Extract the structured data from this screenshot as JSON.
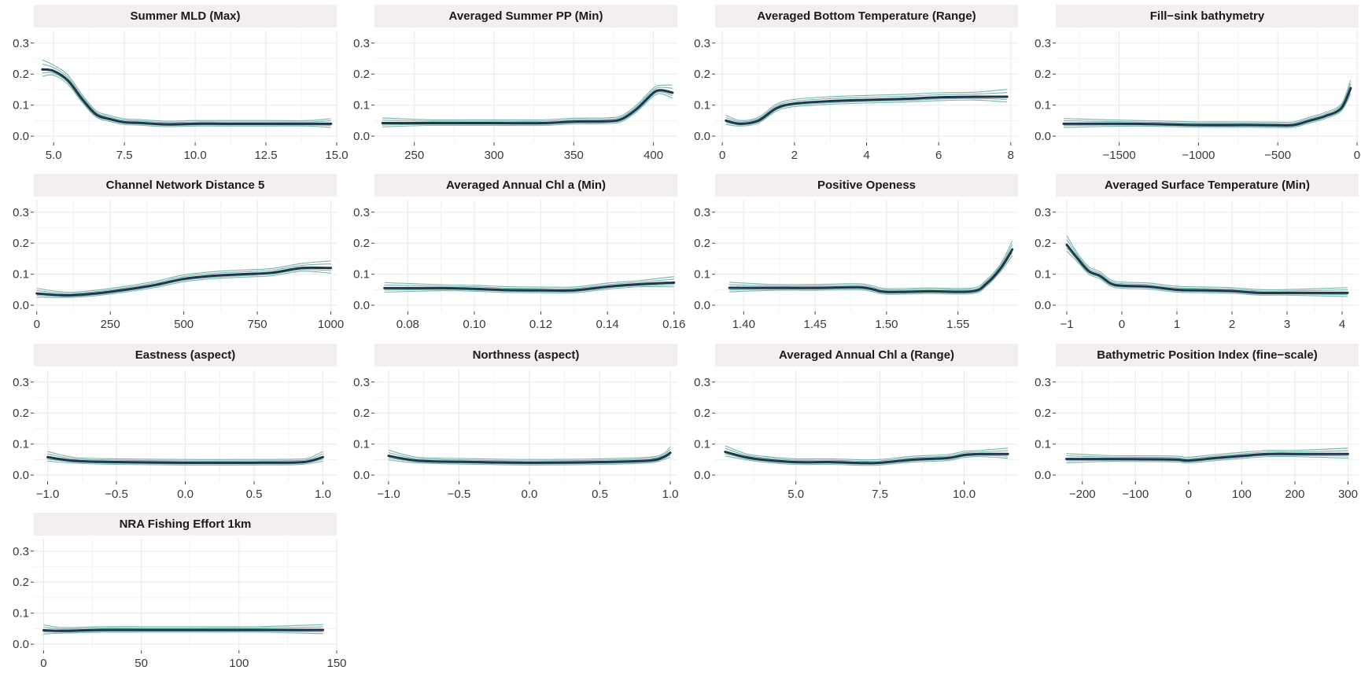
{
  "colors": {
    "strip_bg": "#f2efee",
    "grid": "#ebebeb",
    "main_line": "#1f3550",
    "replicate_line": "#5fa89a",
    "text": "#3a3a3a"
  },
  "chart_data": [
    {
      "type": "line",
      "title": "Summer MLD (Max)",
      "xlim": [
        4.3,
        15.0
      ],
      "ylim": [
        -0.02,
        0.34
      ],
      "xticks": [
        5.0,
        7.5,
        10.0,
        12.5,
        15.0
      ],
      "xtick_labels": [
        "5.0",
        "7.5",
        "10.0",
        "12.5",
        "15.0"
      ],
      "yticks": [
        0.0,
        0.1,
        0.2,
        0.3
      ],
      "ytick_labels": [
        "0.0",
        "0.1",
        "0.2",
        "0.3"
      ],
      "x": [
        4.6,
        5.0,
        5.5,
        6.0,
        6.5,
        7.0,
        7.5,
        8.0,
        9.0,
        10.0,
        11.0,
        12.5,
        14.0,
        14.8
      ],
      "y": [
        0.215,
        0.21,
        0.18,
        0.12,
        0.07,
        0.055,
        0.045,
        0.043,
        0.038,
        0.04,
        0.04,
        0.04,
        0.04,
        0.04
      ]
    },
    {
      "type": "line",
      "title": "Averaged Summer PP (Min)",
      "xlim": [
        225,
        415
      ],
      "ylim": [
        -0.02,
        0.34
      ],
      "xticks": [
        250,
        300,
        350,
        400
      ],
      "xtick_labels": [
        "250",
        "300",
        "350",
        "400"
      ],
      "yticks": [
        0.0,
        0.1,
        0.2,
        0.3
      ],
      "ytick_labels": [
        "0.0",
        "0.1",
        "0.2",
        "0.3"
      ],
      "x": [
        230,
        260,
        300,
        330,
        350,
        370,
        380,
        390,
        400,
        405,
        412
      ],
      "y": [
        0.042,
        0.042,
        0.042,
        0.042,
        0.047,
        0.048,
        0.055,
        0.09,
        0.14,
        0.148,
        0.14
      ]
    },
    {
      "type": "line",
      "title": "Averaged Bottom Temperature (Range)",
      "xlim": [
        -0.2,
        8.2
      ],
      "ylim": [
        -0.02,
        0.34
      ],
      "xticks": [
        0,
        2,
        4,
        6,
        8
      ],
      "xtick_labels": [
        "0",
        "2",
        "4",
        "6",
        "8"
      ],
      "yticks": [
        0.0,
        0.1,
        0.2,
        0.3
      ],
      "ytick_labels": [
        "0.0",
        "0.1",
        "0.2",
        "0.3"
      ],
      "x": [
        0.1,
        0.5,
        1.0,
        1.5,
        2.0,
        3.0,
        4.0,
        5.0,
        6.0,
        7.0,
        7.9
      ],
      "y": [
        0.05,
        0.04,
        0.05,
        0.09,
        0.105,
        0.113,
        0.117,
        0.12,
        0.125,
        0.127,
        0.127
      ]
    },
    {
      "type": "line",
      "title": "Fill−sink bathymetry",
      "xlim": [
        -1900,
        10
      ],
      "ylim": [
        -0.02,
        0.34
      ],
      "xticks": [
        -1500,
        -1000,
        -500,
        0
      ],
      "xtick_labels": [
        "−1500",
        "−1000",
        "−500",
        "0"
      ],
      "yticks": [
        0.0,
        0.1,
        0.2,
        0.3
      ],
      "ytick_labels": [
        "0.0",
        "0.1",
        "0.2",
        "0.3"
      ],
      "x": [
        -1850,
        -1400,
        -1000,
        -700,
        -500,
        -400,
        -300,
        -200,
        -100,
        -40
      ],
      "y": [
        0.04,
        0.04,
        0.036,
        0.036,
        0.035,
        0.036,
        0.05,
        0.065,
        0.09,
        0.155
      ]
    },
    {
      "type": "line",
      "title": "Channel Network Distance 5",
      "xlim": [
        -10,
        1020
      ],
      "ylim": [
        -0.02,
        0.34
      ],
      "xticks": [
        0,
        250,
        500,
        750,
        1000
      ],
      "xtick_labels": [
        "0",
        "250",
        "500",
        "750",
        "1000"
      ],
      "yticks": [
        0.0,
        0.1,
        0.2,
        0.3
      ],
      "ytick_labels": [
        "0.0",
        "0.1",
        "0.2",
        "0.3"
      ],
      "x": [
        0,
        100,
        200,
        300,
        400,
        500,
        600,
        700,
        800,
        900,
        1000
      ],
      "y": [
        0.038,
        0.032,
        0.038,
        0.05,
        0.065,
        0.085,
        0.095,
        0.1,
        0.105,
        0.12,
        0.12
      ]
    },
    {
      "type": "line",
      "title": "Averaged Annual Chl a (Min)",
      "xlim": [
        0.07,
        0.161
      ],
      "ylim": [
        -0.02,
        0.34
      ],
      "xticks": [
        0.08,
        0.1,
        0.12,
        0.14,
        0.16
      ],
      "xtick_labels": [
        "0.08",
        "0.10",
        "0.12",
        "0.14",
        "0.16"
      ],
      "yticks": [
        0.0,
        0.1,
        0.2,
        0.3
      ],
      "ytick_labels": [
        "0.0",
        "0.1",
        "0.2",
        "0.3"
      ],
      "x": [
        0.073,
        0.09,
        0.1,
        0.11,
        0.12,
        0.13,
        0.14,
        0.15,
        0.16
      ],
      "y": [
        0.055,
        0.055,
        0.053,
        0.049,
        0.048,
        0.048,
        0.06,
        0.068,
        0.073
      ]
    },
    {
      "type": "line",
      "title": "Positive Openess",
      "xlim": [
        1.38,
        1.592
      ],
      "ylim": [
        -0.02,
        0.34
      ],
      "xticks": [
        1.4,
        1.45,
        1.5,
        1.55
      ],
      "xtick_labels": [
        "1.40",
        "1.45",
        "1.50",
        "1.55"
      ],
      "yticks": [
        0.0,
        0.1,
        0.2,
        0.3
      ],
      "ytick_labels": [
        "0.0",
        "0.1",
        "0.2",
        "0.3"
      ],
      "x": [
        1.39,
        1.42,
        1.45,
        1.48,
        1.49,
        1.5,
        1.53,
        1.56,
        1.57,
        1.58,
        1.588
      ],
      "y": [
        0.056,
        0.056,
        0.056,
        0.058,
        0.052,
        0.043,
        0.045,
        0.045,
        0.07,
        0.12,
        0.18
      ]
    },
    {
      "type": "line",
      "title": "Averaged Surface Temperature (Min)",
      "xlim": [
        -1.2,
        4.3
      ],
      "ylim": [
        -0.02,
        0.34
      ],
      "xticks": [
        -1,
        0,
        1,
        2,
        3,
        4
      ],
      "xtick_labels": [
        "−1",
        "0",
        "1",
        "2",
        "3",
        "4"
      ],
      "yticks": [
        0.0,
        0.1,
        0.2,
        0.3
      ],
      "ytick_labels": [
        "0.0",
        "0.1",
        "0.2",
        "0.3"
      ],
      "x": [
        -1.0,
        -0.8,
        -0.6,
        -0.4,
        -0.2,
        0.0,
        0.5,
        1.0,
        1.5,
        2.0,
        2.5,
        3.0,
        4.1
      ],
      "y": [
        0.195,
        0.15,
        0.11,
        0.095,
        0.07,
        0.063,
        0.06,
        0.05,
        0.048,
        0.046,
        0.04,
        0.04,
        0.04
      ]
    },
    {
      "type": "line",
      "title": "Eastness (aspect)",
      "xlim": [
        -1.1,
        1.1
      ],
      "ylim": [
        -0.02,
        0.34
      ],
      "xticks": [
        -1.0,
        -0.5,
        0.0,
        0.5,
        1.0
      ],
      "xtick_labels": [
        "−1.0",
        "−0.5",
        "0.0",
        "0.5",
        "1.0"
      ],
      "yticks": [
        0.0,
        0.1,
        0.2,
        0.3
      ],
      "ytick_labels": [
        "0.0",
        "0.1",
        "0.2",
        "0.3"
      ],
      "x": [
        -1.0,
        -0.8,
        -0.5,
        0.0,
        0.5,
        0.8,
        0.9,
        1.0
      ],
      "y": [
        0.058,
        0.046,
        0.042,
        0.04,
        0.04,
        0.041,
        0.045,
        0.058
      ]
    },
    {
      "type": "line",
      "title": "Northness (aspect)",
      "xlim": [
        -1.1,
        1.05
      ],
      "ylim": [
        -0.02,
        0.34
      ],
      "xticks": [
        -1.0,
        -0.5,
        0.0,
        0.5,
        1.0
      ],
      "xtick_labels": [
        "−1.0",
        "−0.5",
        "0.0",
        "0.5",
        "1.0"
      ],
      "yticks": [
        0.0,
        0.1,
        0.2,
        0.3
      ],
      "ytick_labels": [
        "0.0",
        "0.1",
        "0.2",
        "0.3"
      ],
      "x": [
        -1.0,
        -0.8,
        -0.5,
        0.0,
        0.5,
        0.85,
        0.95,
        1.0
      ],
      "y": [
        0.062,
        0.047,
        0.043,
        0.04,
        0.042,
        0.047,
        0.058,
        0.072
      ]
    },
    {
      "type": "line",
      "title": "Averaged Annual Chl a (Range)",
      "xlim": [
        2.6,
        11.6
      ],
      "ylim": [
        -0.02,
        0.34
      ],
      "xticks": [
        5.0,
        7.5,
        10.0
      ],
      "xtick_labels": [
        "5.0",
        "7.5",
        "10.0"
      ],
      "yticks": [
        0.0,
        0.1,
        0.2,
        0.3
      ],
      "ytick_labels": [
        "0.0",
        "0.1",
        "0.2",
        "0.3"
      ],
      "x": [
        2.9,
        3.5,
        4.0,
        5.0,
        6.0,
        7.0,
        7.5,
        8.5,
        9.5,
        10.0,
        10.5,
        11.3
      ],
      "y": [
        0.075,
        0.058,
        0.05,
        0.042,
        0.042,
        0.039,
        0.04,
        0.05,
        0.055,
        0.065,
        0.068,
        0.068
      ]
    },
    {
      "type": "line",
      "title": "Bathymetric Position Index (fine−scale)",
      "xlim": [
        -250,
        320
      ],
      "ylim": [
        -0.02,
        0.34
      ],
      "xticks": [
        -200,
        -100,
        0,
        100,
        200,
        300
      ],
      "xtick_labels": [
        "−200",
        "−100",
        "0",
        "100",
        "200",
        "300"
      ],
      "yticks": [
        0.0,
        0.1,
        0.2,
        0.3
      ],
      "ytick_labels": [
        "0.0",
        "0.1",
        "0.2",
        "0.3"
      ],
      "x": [
        -230,
        -150,
        -50,
        -20,
        0,
        50,
        100,
        150,
        200,
        300
      ],
      "y": [
        0.052,
        0.052,
        0.051,
        0.05,
        0.047,
        0.055,
        0.062,
        0.068,
        0.068,
        0.068
      ]
    },
    {
      "type": "line",
      "title": "NRA Fishing Effort 1km",
      "xlim": [
        -5,
        150
      ],
      "ylim": [
        -0.02,
        0.34
      ],
      "xticks": [
        0,
        50,
        100,
        150
      ],
      "xtick_labels": [
        "0",
        "50",
        "100",
        "150"
      ],
      "yticks": [
        0.0,
        0.1,
        0.2,
        0.3
      ],
      "ytick_labels": [
        "0.0",
        "0.1",
        "0.2",
        "0.3"
      ],
      "x": [
        0,
        10,
        30,
        50,
        80,
        110,
        143
      ],
      "y": [
        0.045,
        0.043,
        0.046,
        0.046,
        0.046,
        0.046,
        0.046
      ]
    }
  ]
}
